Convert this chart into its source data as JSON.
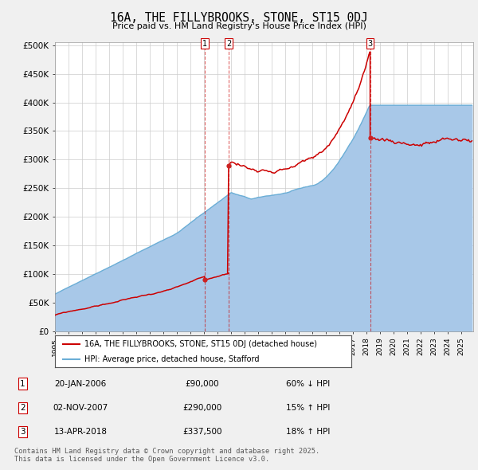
{
  "title": "16A, THE FILLYBROOKS, STONE, ST15 0DJ",
  "subtitle": "Price paid vs. HM Land Registry's House Price Index (HPI)",
  "ylabel_ticks": [
    "£0",
    "£50K",
    "£100K",
    "£150K",
    "£200K",
    "£250K",
    "£300K",
    "£350K",
    "£400K",
    "£450K",
    "£500K"
  ],
  "ytick_values": [
    0,
    50000,
    100000,
    150000,
    200000,
    250000,
    300000,
    350000,
    400000,
    450000,
    500000
  ],
  "xlim_start": 1995.0,
  "xlim_end": 2025.9,
  "hpi_color": "#a8c8e8",
  "hpi_line_color": "#6baed6",
  "price_color": "#cc0000",
  "vline_color": "#cc0000",
  "legend_items": [
    "16A, THE FILLYBROOKS, STONE, ST15 0DJ (detached house)",
    "HPI: Average price, detached house, Stafford"
  ],
  "transactions": [
    {
      "num": 1,
      "date": "20-JAN-2006",
      "price": 90000,
      "pct": "60%",
      "dir": "↓",
      "x": 2006.05
    },
    {
      "num": 2,
      "date": "02-NOV-2007",
      "price": 290000,
      "pct": "15%",
      "dir": "↑",
      "x": 2007.83
    },
    {
      "num": 3,
      "date": "13-APR-2018",
      "price": 337500,
      "pct": "18%",
      "dir": "↑",
      "x": 2018.28
    }
  ],
  "footer": "Contains HM Land Registry data © Crown copyright and database right 2025.\nThis data is licensed under the Open Government Licence v3.0.",
  "bg_color": "#f0f0f0",
  "plot_bg_color": "#ffffff"
}
